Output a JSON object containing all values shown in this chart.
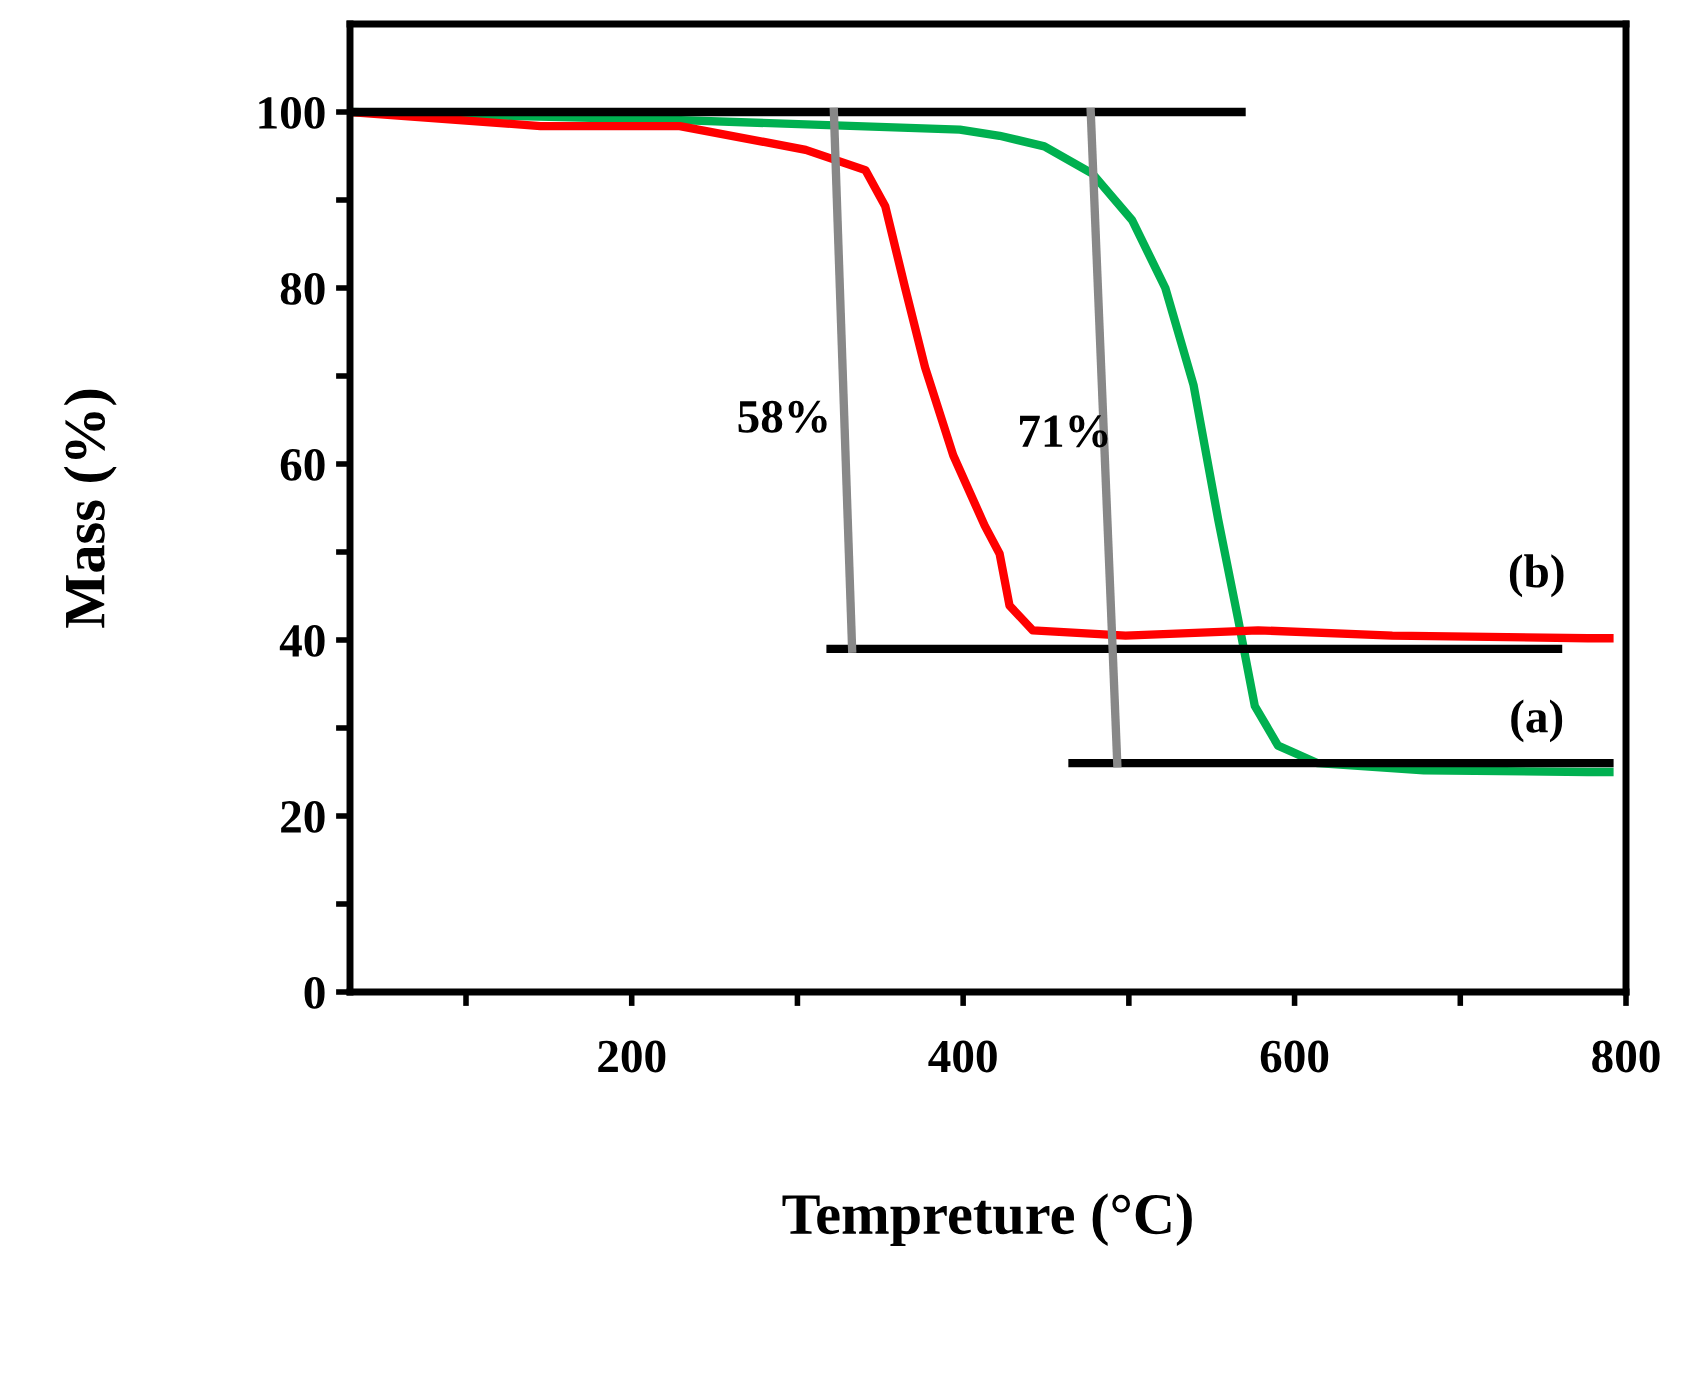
{
  "chart_data": {
    "type": "line",
    "xlabel": "Tempreture (°C)",
    "ylabel": "Mass (%)",
    "xlim": [
      30,
      800
    ],
    "ylim": [
      0,
      110
    ],
    "xticks": [
      {
        "value": 100,
        "label": null
      },
      200,
      {
        "value": 300,
        "label": null
      },
      400,
      {
        "value": 500,
        "label": null
      },
      600,
      {
        "value": 700,
        "label": null
      },
      800
    ],
    "yticks": [
      0,
      {
        "value": 10,
        "label": null
      },
      20,
      {
        "value": 30,
        "label": null
      },
      40,
      {
        "value": 50,
        "label": null
      },
      60,
      {
        "value": 70,
        "label": null
      },
      80,
      {
        "value": 90,
        "label": null
      },
      100
    ],
    "grid": false,
    "legend": false,
    "marker": "none",
    "line_style": "solid",
    "series": [
      {
        "color": "#00b050",
        "x": [
          30,
          225,
          398,
          422,
          449,
          478,
          502,
          522,
          539,
          554,
          566,
          576,
          590,
          614,
          678,
          777,
          790
        ],
        "values": [
          100,
          99.1,
          98,
          97.3,
          96.1,
          93,
          87.7,
          80,
          69,
          53.6,
          42.3,
          32.5,
          28,
          26,
          25.2,
          25,
          25
        ]
      },
      {
        "color": "#ff0000",
        "x": [
          30,
          145,
          229,
          305,
          341,
          353,
          365,
          377,
          394,
          413,
          422,
          428,
          442,
          498,
          578,
          659,
          777,
          790
        ],
        "values": [
          100,
          98.4,
          98.4,
          95.7,
          93.4,
          89.3,
          80,
          71,
          61,
          53,
          49.8,
          43.9,
          41.1,
          40.5,
          41.1,
          40.5,
          40.2,
          40.2
        ]
      },
      {
        "color": "#000000",
        "x": [
          30,
          568
        ],
        "values": [
          100,
          100
        ]
      },
      {
        "color": "#000000",
        "x": [
          320,
          759
        ],
        "values": [
          39,
          39
        ]
      },
      {
        "color": "#000000",
        "x": [
          466,
          790
        ],
        "values": [
          26,
          26
        ]
      },
      {
        "color": "#888888",
        "x": [
          322,
          333
        ],
        "values": [
          100,
          39
        ]
      },
      {
        "color": "#888888",
        "x": [
          477,
          493
        ],
        "values": [
          100,
          26
        ]
      }
    ],
    "annotations": [
      "58%",
      "71%",
      "(b)",
      "(a)"
    ]
  }
}
